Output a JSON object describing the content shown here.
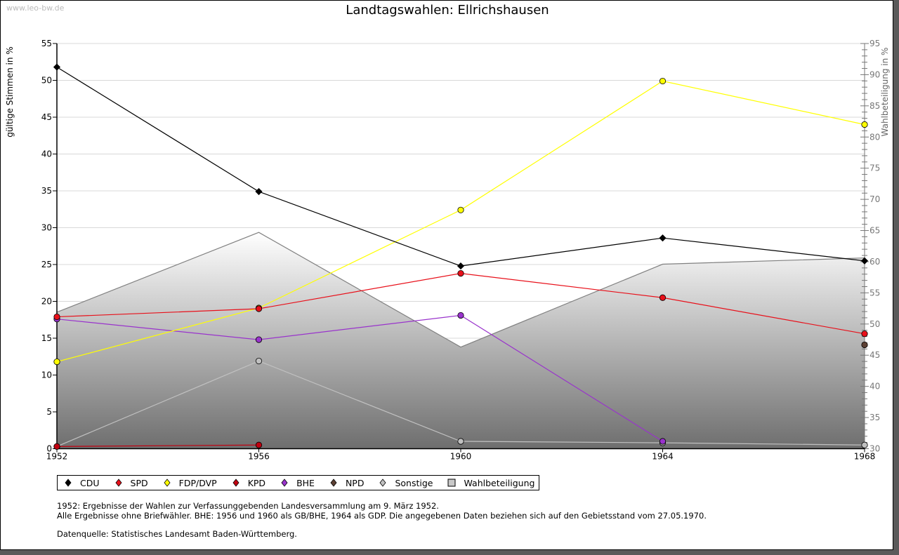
{
  "watermark": "www.leo-bw.de",
  "chart_data": {
    "type": "line",
    "title": "Landtagswahlen: Ellrichshausen",
    "xlabel": "",
    "ylabel": "gültige Stimmen in %",
    "ylabel_right": "Wahlbeteiligung in %",
    "x": [
      1952,
      1956,
      1960,
      1964,
      1968
    ],
    "x_tick_labels": [
      "1952",
      "1956",
      "1960",
      "1964",
      "1968"
    ],
    "ylim": [
      0,
      55
    ],
    "y_ticks": [
      0,
      5,
      10,
      15,
      20,
      25,
      30,
      35,
      40,
      45,
      50,
      55
    ],
    "ylim_right": [
      30,
      95
    ],
    "y_ticks_right": [
      30,
      35,
      40,
      45,
      50,
      55,
      60,
      65,
      70,
      75,
      80,
      85,
      90,
      95
    ],
    "grid": true,
    "legend_position": "bottom-left",
    "area_series": {
      "name": "Wahlbeteiligung",
      "axis": "right",
      "values": [
        51.9,
        64.7,
        46.3,
        59.6,
        60.6
      ],
      "color": "#808080"
    },
    "series": [
      {
        "name": "CDU",
        "color": "#000000",
        "values": [
          51.8,
          34.9,
          24.8,
          28.6,
          25.5
        ]
      },
      {
        "name": "SPD",
        "color": "#e8101a",
        "values": [
          17.9,
          19.0,
          23.8,
          20.5,
          15.6
        ]
      },
      {
        "name": "FDP/DVP",
        "color": "#ffff00",
        "values": [
          11.8,
          19.1,
          32.4,
          49.9,
          44.0
        ]
      },
      {
        "name": "KPD",
        "color": "#c00010",
        "values": [
          0.3,
          0.5,
          null,
          null,
          null
        ]
      },
      {
        "name": "BHE",
        "color": "#9933cc",
        "values": [
          17.6,
          14.8,
          18.1,
          1.0,
          null
        ]
      },
      {
        "name": "NPD",
        "color": "#5c4033",
        "values": [
          null,
          null,
          null,
          null,
          14.1
        ]
      },
      {
        "name": "Sonstige",
        "color": "#c0c0c0",
        "values": [
          0.3,
          11.9,
          1.0,
          0.8,
          0.5
        ]
      }
    ]
  },
  "legend": [
    {
      "label": "CDU",
      "color": "#000000",
      "shape": "diamond"
    },
    {
      "label": "SPD",
      "color": "#e8101a",
      "shape": "diamond"
    },
    {
      "label": "FDP/DVP",
      "color": "#ffff00",
      "shape": "diamond"
    },
    {
      "label": "KPD",
      "color": "#c00010",
      "shape": "diamond"
    },
    {
      "label": "BHE",
      "color": "#9933cc",
      "shape": "diamond"
    },
    {
      "label": "NPD",
      "color": "#5c4033",
      "shape": "diamond"
    },
    {
      "label": "Sonstige",
      "color": "#c0c0c0",
      "shape": "diamond"
    },
    {
      "label": "Wahlbeteiligung",
      "color": "#c8c8c8",
      "shape": "square"
    }
  ],
  "notes": {
    "line1": "1952: Ergebnisse der Wahlen zur Verfassunggebenden Landesversammlung am 9. März 1952.",
    "line2": "Alle Ergebnisse ohne Briefwähler. BHE: 1956 und 1960 als GB/BHE, 1964 als GDP. Die angegebenen Daten beziehen sich auf den Gebietsstand vom 27.05.1970.",
    "source": "Datenquelle: Statistisches Landesamt Baden-Württemberg."
  }
}
